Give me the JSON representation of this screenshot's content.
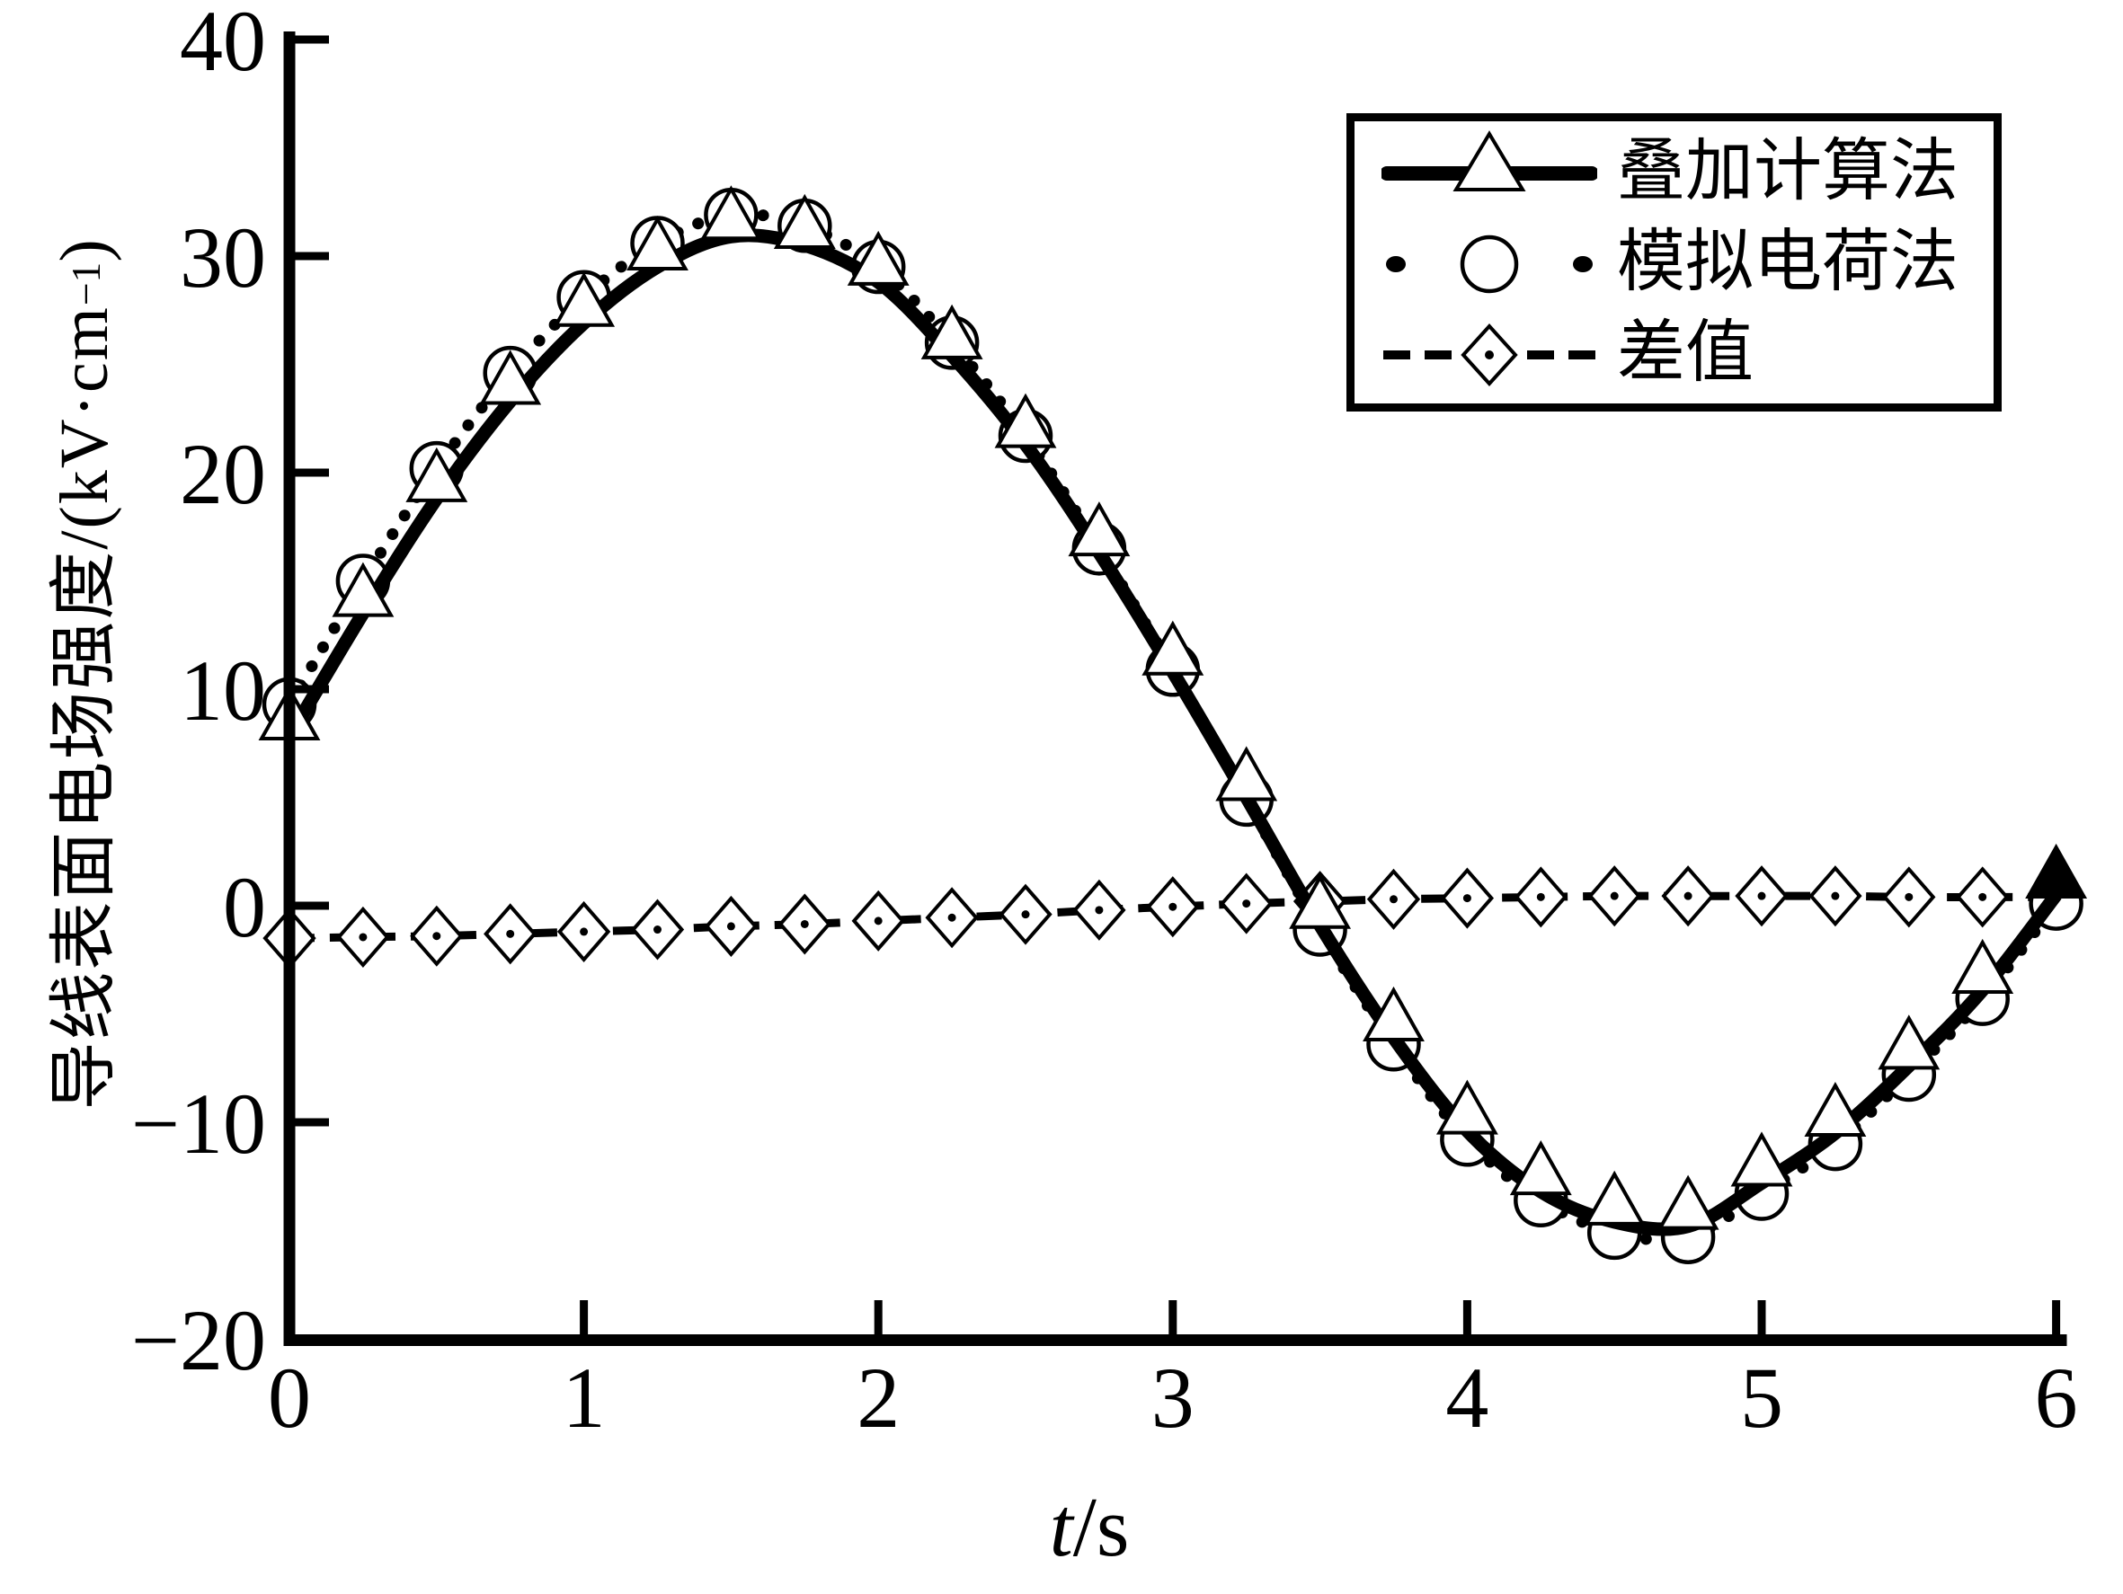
{
  "figure": {
    "background_color": "#ffffff",
    "ink_color": "#000000"
  },
  "axes": {
    "x": {
      "label": "t/s",
      "label_var": "t",
      "label_unit": "/s",
      "min": 0,
      "max": 6,
      "ticks": [
        0,
        1,
        2,
        3,
        4,
        5,
        6
      ],
      "tick_labels": [
        "0",
        "1",
        "2",
        "3",
        "4",
        "5",
        "6"
      ]
    },
    "y": {
      "label": "导线表面电场强度/(kV·cm⁻¹)",
      "label_main": "导线表面电场强度/(kV·cm",
      "label_sup": "−1",
      "label_end": ")",
      "min": -20,
      "max": 40,
      "ticks": [
        40,
        30,
        20,
        10,
        0,
        -10,
        -20
      ],
      "tick_labels": [
        "40",
        "30",
        "20",
        "10",
        "0",
        "−10",
        "−20"
      ]
    }
  },
  "legend": {
    "position": "upper right",
    "entries": [
      {
        "label": "叠加计算法",
        "line": "solid-thick",
        "marker": "triangle-open"
      },
      {
        "label": "模拟电荷法",
        "line": "dotted",
        "marker": "circle-open"
      },
      {
        "label": "差值",
        "line": "dashed",
        "marker": "diamond-open-dot"
      }
    ]
  },
  "chart_data": {
    "type": "line",
    "title": "",
    "xlabel": "t/s",
    "ylabel": "导线表面电场强度/(kV·cm⁻¹)",
    "xlim": [
      0,
      6
    ],
    "ylim": [
      -20,
      40
    ],
    "grid": false,
    "legend_position": "upper right",
    "marker_interval_s": 0.25,
    "x": [
      0,
      0.25,
      0.5,
      0.75,
      1,
      1.25,
      1.5,
      1.75,
      2,
      2.25,
      2.5,
      2.75,
      3,
      3.25,
      3.5,
      3.75,
      4,
      4.25,
      4.5,
      4.75,
      5,
      5.25,
      5.5,
      5.75,
      6
    ],
    "series": [
      {
        "name": "叠加计算法",
        "line": "solid-thick",
        "marker": "triangle-open",
        "end_marker_filled": true,
        "values": [
          7.8,
          13.5,
          18.8,
          23.3,
          26.9,
          29.5,
          30.9,
          30.5,
          28.8,
          25.4,
          21.3,
          16.3,
          10.8,
          5.0,
          -0.9,
          -6.1,
          -10.4,
          -13.2,
          -14.6,
          -14.8,
          -12.8,
          -10.5,
          -7.4,
          -3.9,
          0.5
        ]
      },
      {
        "name": "模拟电荷法",
        "line": "dotted",
        "marker": "circle-open",
        "end_marker_filled": false,
        "values": [
          9.3,
          15.0,
          20.2,
          24.6,
          28.1,
          30.6,
          31.9,
          31.4,
          29.5,
          26.0,
          21.7,
          16.5,
          10.9,
          4.9,
          -1.1,
          -6.4,
          -10.8,
          -13.6,
          -15.1,
          -15.3,
          -13.3,
          -11.0,
          -7.8,
          -4.3,
          0.1
        ]
      },
      {
        "name": "差值",
        "line": "dashed",
        "marker": "diamond-open-dot",
        "end_marker_filled": false,
        "values": [
          -1.5,
          -1.45,
          -1.4,
          -1.3,
          -1.2,
          -1.1,
          -0.95,
          -0.85,
          -0.7,
          -0.55,
          -0.4,
          -0.2,
          -0.05,
          0.1,
          0.2,
          0.3,
          0.35,
          0.4,
          0.45,
          0.45,
          0.45,
          0.45,
          0.4,
          0.4,
          0.4
        ]
      }
    ]
  }
}
